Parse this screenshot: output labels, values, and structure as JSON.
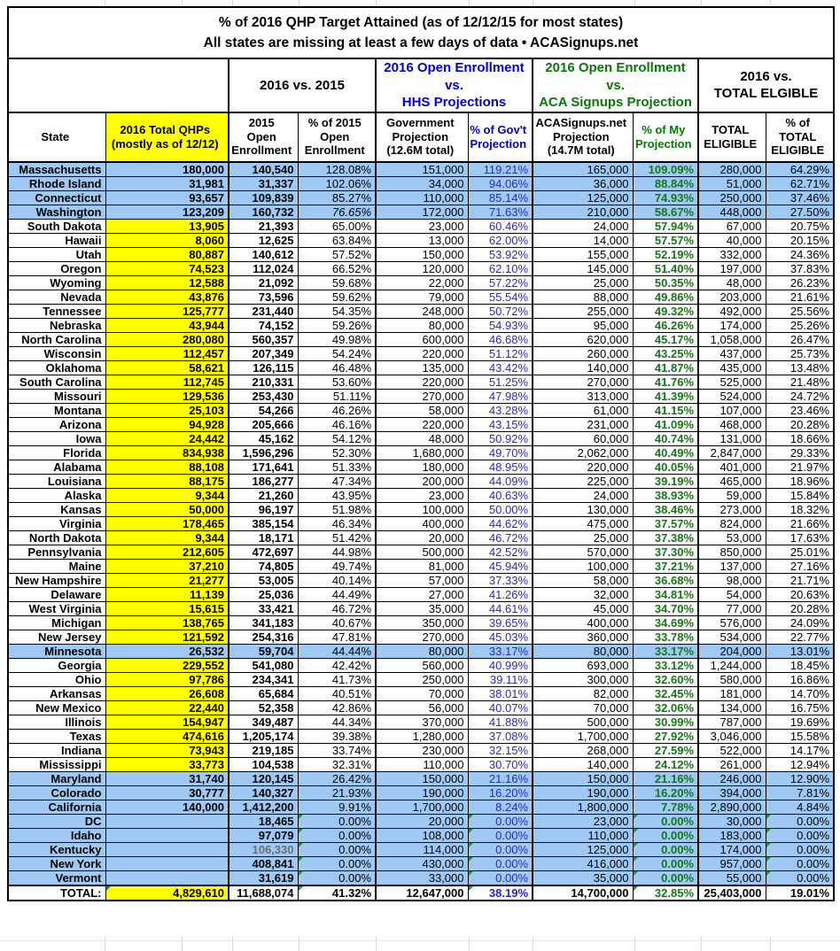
{
  "chart_data": {
    "type": "table",
    "title": "% of 2016 QHP Target Attained (as of 12/12/15 for most states)",
    "subtitle": "All states are missing at least a few days of data • ACASignups.net",
    "colors": {
      "row_highlight_blue": "#9fc9f2",
      "qhp_yellow": "#ffff00",
      "pct_gov_text_blue": "#2929cc",
      "pct_my_text_green": "#147814",
      "header_blue": "#0000d0",
      "header_green": "#067806",
      "error_triangle_green": "#00a14b",
      "grid_black": "#000000"
    },
    "group_headers": [
      {
        "label": "",
        "span": 2,
        "color": "black"
      },
      {
        "label": "2016 vs. 2015",
        "span": 2,
        "color": "black"
      },
      {
        "label": "2016 Open Enrollment\nvs.\nHHS Projections",
        "span": 2,
        "color": "blue"
      },
      {
        "label": "2016 Open Enrollment\nvs.\nACA Signups Projection",
        "span": 2,
        "color": "green"
      },
      {
        "label": "2016 vs.\nTOTAL ELGIBLE",
        "span": 2,
        "color": "black"
      }
    ],
    "columns": [
      {
        "label": "State"
      },
      {
        "label": "2016 Total QHPs\n(mostly as of 12/12)",
        "bg": "yellow"
      },
      {
        "label": "2015\nOpen\nEnrollment"
      },
      {
        "label": "% of 2015\nOpen\nEnrollment"
      },
      {
        "label": "Government\nProjection\n(12.6M total)"
      },
      {
        "label": "% of Gov't\nProjection",
        "color": "blue"
      },
      {
        "label": "ACASignups.net\nProjection\n(14.7M total)"
      },
      {
        "label": "% of My\nProjection",
        "color": "green"
      },
      {
        "label": "TOTAL\nELIGIBLE"
      },
      {
        "label": "% of\nTOTAL\nELIGIBLE"
      }
    ],
    "rows": [
      {
        "state": "Massachusetts",
        "values": [
          "180,000",
          "140,540",
          "128.08%",
          "151,000",
          "119.21%",
          "165,000",
          "109.09%",
          "280,000",
          "64.29%"
        ],
        "highlight": true
      },
      {
        "state": "Rhode Island",
        "values": [
          "31,981",
          "31,337",
          "102.06%",
          "34,000",
          "94.06%",
          "36,000",
          "88.84%",
          "51,000",
          "62.71%"
        ],
        "highlight": true
      },
      {
        "state": "Connecticut",
        "values": [
          "93,657",
          "109,839",
          "85.27%",
          "110,000",
          "85.14%",
          "125,000",
          "74.93%",
          "250,000",
          "37.46%"
        ],
        "highlight": true
      },
      {
        "state": "Washington",
        "values": [
          "123,209",
          "160,732",
          "76.65%",
          "172,000",
          "71.63%",
          "210,000",
          "58.67%",
          "448,000",
          "27.50%"
        ],
        "highlight": true,
        "italic": [
          2
        ]
      },
      {
        "state": "South Dakota",
        "values": [
          "13,905",
          "21,393",
          "65.00%",
          "23,000",
          "60.46%",
          "24,000",
          "57.94%",
          "67,000",
          "20.75%"
        ]
      },
      {
        "state": "Hawaii",
        "values": [
          "8,060",
          "12,625",
          "63.84%",
          "13,000",
          "62.00%",
          "14,000",
          "57.57%",
          "40,000",
          "20.15%"
        ]
      },
      {
        "state": "Utah",
        "values": [
          "80,887",
          "140,612",
          "57.52%",
          "150,000",
          "53.92%",
          "155,000",
          "52.19%",
          "332,000",
          "24.36%"
        ]
      },
      {
        "state": "Oregon",
        "values": [
          "74,523",
          "112,024",
          "66.52%",
          "120,000",
          "62.10%",
          "145,000",
          "51.40%",
          "197,000",
          "37.83%"
        ]
      },
      {
        "state": "Wyoming",
        "values": [
          "12,588",
          "21,092",
          "59.68%",
          "22,000",
          "57.22%",
          "25,000",
          "50.35%",
          "48,000",
          "26.23%"
        ]
      },
      {
        "state": "Nevada",
        "values": [
          "43,876",
          "73,596",
          "59.62%",
          "79,000",
          "55.54%",
          "88,000",
          "49.86%",
          "203,000",
          "21.61%"
        ]
      },
      {
        "state": "Tennessee",
        "values": [
          "125,777",
          "231,440",
          "54.35%",
          "248,000",
          "50.72%",
          "255,000",
          "49.32%",
          "492,000",
          "25.56%"
        ]
      },
      {
        "state": "Nebraska",
        "values": [
          "43,944",
          "74,152",
          "59.26%",
          "80,000",
          "54.93%",
          "95,000",
          "46.26%",
          "174,000",
          "25.26%"
        ]
      },
      {
        "state": "North Carolina",
        "values": [
          "280,080",
          "560,357",
          "49.98%",
          "600,000",
          "46.68%",
          "620,000",
          "45.17%",
          "1,058,000",
          "26.47%"
        ]
      },
      {
        "state": "Wisconsin",
        "values": [
          "112,457",
          "207,349",
          "54.24%",
          "220,000",
          "51.12%",
          "260,000",
          "43.25%",
          "437,000",
          "25.73%"
        ]
      },
      {
        "state": "Oklahoma",
        "values": [
          "58,621",
          "126,115",
          "46.48%",
          "135,000",
          "43.42%",
          "140,000",
          "41.87%",
          "435,000",
          "13.48%"
        ]
      },
      {
        "state": "South Carolina",
        "values": [
          "112,745",
          "210,331",
          "53.60%",
          "220,000",
          "51.25%",
          "270,000",
          "41.76%",
          "525,000",
          "21.48%"
        ]
      },
      {
        "state": "Missouri",
        "values": [
          "129,536",
          "253,430",
          "51.11%",
          "270,000",
          "47.98%",
          "313,000",
          "41.39%",
          "524,000",
          "24.72%"
        ]
      },
      {
        "state": "Montana",
        "values": [
          "25,103",
          "54,266",
          "46.26%",
          "58,000",
          "43.28%",
          "61,000",
          "41.15%",
          "107,000",
          "23.46%"
        ]
      },
      {
        "state": "Arizona",
        "values": [
          "94,928",
          "205,666",
          "46.16%",
          "220,000",
          "43.15%",
          "231,000",
          "41.09%",
          "468,000",
          "20.28%"
        ]
      },
      {
        "state": "Iowa",
        "values": [
          "24,442",
          "45,162",
          "54.12%",
          "48,000",
          "50.92%",
          "60,000",
          "40.74%",
          "131,000",
          "18.66%"
        ]
      },
      {
        "state": "Florida",
        "values": [
          "834,938",
          "1,596,296",
          "52.30%",
          "1,680,000",
          "49.70%",
          "2,062,000",
          "40.49%",
          "2,847,000",
          "29.33%"
        ]
      },
      {
        "state": "Alabama",
        "values": [
          "88,108",
          "171,641",
          "51.33%",
          "180,000",
          "48.95%",
          "220,000",
          "40.05%",
          "401,000",
          "21.97%"
        ]
      },
      {
        "state": "Louisiana",
        "values": [
          "88,175",
          "186,277",
          "47.34%",
          "200,000",
          "44.09%",
          "225,000",
          "39.19%",
          "465,000",
          "18.96%"
        ]
      },
      {
        "state": "Alaska",
        "values": [
          "9,344",
          "21,260",
          "43.95%",
          "23,000",
          "40.63%",
          "24,000",
          "38.93%",
          "59,000",
          "15.84%"
        ]
      },
      {
        "state": "Kansas",
        "values": [
          "50,000",
          "96,197",
          "51.98%",
          "100,000",
          "50.00%",
          "130,000",
          "38.46%",
          "273,000",
          "18.32%"
        ]
      },
      {
        "state": "Virginia",
        "values": [
          "178,465",
          "385,154",
          "46.34%",
          "400,000",
          "44.62%",
          "475,000",
          "37.57%",
          "824,000",
          "21.66%"
        ]
      },
      {
        "state": "North Dakota",
        "values": [
          "9,344",
          "18,171",
          "51.42%",
          "20,000",
          "46.72%",
          "25,000",
          "37.38%",
          "53,000",
          "17.63%"
        ]
      },
      {
        "state": "Pennsylvania",
        "values": [
          "212,605",
          "472,697",
          "44.98%",
          "500,000",
          "42.52%",
          "570,000",
          "37.30%",
          "850,000",
          "25.01%"
        ]
      },
      {
        "state": "Maine",
        "values": [
          "37,210",
          "74,805",
          "49.74%",
          "81,000",
          "45.94%",
          "100,000",
          "37.21%",
          "137,000",
          "27.16%"
        ]
      },
      {
        "state": "New Hampshire",
        "values": [
          "21,277",
          "53,005",
          "40.14%",
          "57,000",
          "37.33%",
          "58,000",
          "36.68%",
          "98,000",
          "21.71%"
        ]
      },
      {
        "state": "Delaware",
        "values": [
          "11,139",
          "25,036",
          "44.49%",
          "27,000",
          "41.26%",
          "32,000",
          "34.81%",
          "54,000",
          "20.63%"
        ]
      },
      {
        "state": "West Virginia",
        "values": [
          "15,615",
          "33,421",
          "46.72%",
          "35,000",
          "44.61%",
          "45,000",
          "34.70%",
          "77,000",
          "20.28%"
        ]
      },
      {
        "state": "Michigan",
        "values": [
          "138,765",
          "341,183",
          "40.67%",
          "350,000",
          "39.65%",
          "400,000",
          "34.69%",
          "576,000",
          "24.09%"
        ]
      },
      {
        "state": "New Jersey",
        "values": [
          "121,592",
          "254,316",
          "47.81%",
          "270,000",
          "45.03%",
          "360,000",
          "33.78%",
          "534,000",
          "22.77%"
        ]
      },
      {
        "state": "Minnesota",
        "values": [
          "26,532",
          "59,704",
          "44.44%",
          "80,000",
          "33.17%",
          "80,000",
          "33.17%",
          "204,000",
          "13.01%"
        ],
        "highlight": true
      },
      {
        "state": "Georgia",
        "values": [
          "229,552",
          "541,080",
          "42.42%",
          "560,000",
          "40.99%",
          "693,000",
          "33.12%",
          "1,244,000",
          "18.45%"
        ]
      },
      {
        "state": "Ohio",
        "values": [
          "97,786",
          "234,341",
          "41.73%",
          "250,000",
          "39.11%",
          "300,000",
          "32.60%",
          "580,000",
          "16.86%"
        ]
      },
      {
        "state": "Arkansas",
        "values": [
          "26,608",
          "65,684",
          "40.51%",
          "70,000",
          "38.01%",
          "82,000",
          "32.45%",
          "181,000",
          "14.70%"
        ]
      },
      {
        "state": "New Mexico",
        "values": [
          "22,440",
          "52,358",
          "42.86%",
          "56,000",
          "40.07%",
          "70,000",
          "32.06%",
          "134,000",
          "16.75%"
        ]
      },
      {
        "state": "Illinois",
        "values": [
          "154,947",
          "349,487",
          "44.34%",
          "370,000",
          "41.88%",
          "500,000",
          "30.99%",
          "787,000",
          "19.69%"
        ]
      },
      {
        "state": "Texas",
        "values": [
          "474,616",
          "1,205,174",
          "39.38%",
          "1,280,000",
          "37.08%",
          "1,700,000",
          "27.92%",
          "3,046,000",
          "15.58%"
        ]
      },
      {
        "state": "Indiana",
        "values": [
          "73,943",
          "219,185",
          "33.74%",
          "230,000",
          "32.15%",
          "268,000",
          "27.59%",
          "522,000",
          "14.17%"
        ]
      },
      {
        "state": "Mississippi",
        "values": [
          "33,773",
          "104,538",
          "32.31%",
          "110,000",
          "30.70%",
          "140,000",
          "24.12%",
          "261,000",
          "12.94%"
        ]
      },
      {
        "state": "Maryland",
        "values": [
          "31,740",
          "120,145",
          "26.42%",
          "150,000",
          "21.16%",
          "150,000",
          "21.16%",
          "246,000",
          "12.90%"
        ],
        "highlight": true
      },
      {
        "state": "Colorado",
        "values": [
          "30,777",
          "140,327",
          "21.93%",
          "190,000",
          "16.20%",
          "190,000",
          "16.20%",
          "394,000",
          "7.81%"
        ],
        "highlight": true
      },
      {
        "state": "California",
        "values": [
          "140,000",
          "1,412,200",
          "9.91%",
          "1,700,000",
          "8.24%",
          "1,800,000",
          "7.78%",
          "2,890,000",
          "4.84%"
        ],
        "highlight": true
      },
      {
        "state": "DC",
        "values": [
          "",
          "18,465",
          "0.00%",
          "20,000",
          "0.00%",
          "23,000",
          "0.00%",
          "30,000",
          "0.00%"
        ],
        "highlight": true,
        "triangles": [
          2,
          4,
          6,
          8
        ]
      },
      {
        "state": "Idaho",
        "values": [
          "",
          "97,079",
          "0.00%",
          "108,000",
          "0.00%",
          "110,000",
          "0.00%",
          "183,000",
          "0.00%"
        ],
        "highlight": true,
        "triangles": [
          2,
          4,
          6,
          8
        ]
      },
      {
        "state": "Kentucky",
        "values": [
          "",
          "106,330",
          "0.00%",
          "114,000",
          "0.00%",
          "125,000",
          "0.00%",
          "174,000",
          "0.00%"
        ],
        "highlight": true,
        "muted": [
          1
        ],
        "triangles": [
          2,
          4,
          6,
          8
        ]
      },
      {
        "state": "New York",
        "values": [
          "",
          "408,841",
          "0.00%",
          "430,000",
          "0.00%",
          "416,000",
          "0.00%",
          "957,000",
          "0.00%"
        ],
        "highlight": true,
        "triangles": [
          2,
          4,
          6,
          8
        ]
      },
      {
        "state": "Vermont",
        "values": [
          "",
          "31,619",
          "0.00%",
          "33,000",
          "0.00%",
          "35,000",
          "0.00%",
          "55,000",
          "0.00%"
        ],
        "highlight": true,
        "triangles": [
          2,
          4,
          6,
          8
        ]
      }
    ],
    "total": {
      "label": "TOTAL:",
      "values": [
        "4,829,610",
        "11,688,074",
        "41.32%",
        "12,647,000",
        "38.19%",
        "14,700,000",
        "32.85%",
        "25,403,000",
        "19.01%"
      ],
      "triangles": [
        0,
        2,
        4,
        6
      ]
    }
  }
}
